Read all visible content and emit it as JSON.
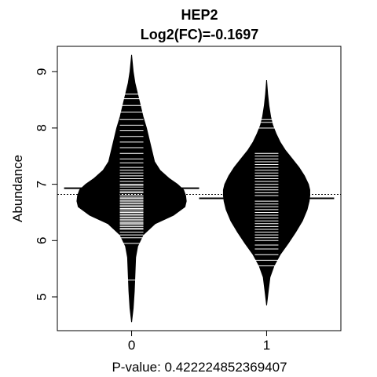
{
  "chart_data": {
    "type": "beanplot",
    "title": "HEP2",
    "subtitle": "Log2(FC)=-0.1697",
    "xlabel": "P-value: 0.422224852369407",
    "ylabel": "Abundance",
    "categories": [
      "0",
      "1"
    ],
    "yticks": [
      5,
      6,
      7,
      8,
      9
    ],
    "ylim": [
      4.4,
      9.45
    ],
    "xlim": [
      -0.55,
      1.55
    ],
    "overall_mean": 6.82,
    "grid": false,
    "legend": "none",
    "colors": {
      "bean": "#000000",
      "line": "#ffffff",
      "background": "#ffffff"
    },
    "groups": [
      {
        "category": "0",
        "mean": 6.93,
        "density_profile": [
          [
            4.55,
            0.0
          ],
          [
            4.8,
            0.012
          ],
          [
            5.1,
            0.02
          ],
          [
            5.4,
            0.025
          ],
          [
            5.7,
            0.03
          ],
          [
            5.9,
            0.045
          ],
          [
            6.1,
            0.085
          ],
          [
            6.3,
            0.175
          ],
          [
            6.45,
            0.31
          ],
          [
            6.6,
            0.395
          ],
          [
            6.7,
            0.405
          ],
          [
            6.8,
            0.4
          ],
          [
            6.9,
            0.385
          ],
          [
            7.0,
            0.34
          ],
          [
            7.1,
            0.28
          ],
          [
            7.25,
            0.21
          ],
          [
            7.4,
            0.17
          ],
          [
            7.6,
            0.15
          ],
          [
            7.8,
            0.13
          ],
          [
            8.0,
            0.11
          ],
          [
            8.2,
            0.085
          ],
          [
            8.4,
            0.065
          ],
          [
            8.6,
            0.045
          ],
          [
            8.8,
            0.025
          ],
          [
            9.0,
            0.012
          ],
          [
            9.15,
            0.006
          ],
          [
            9.3,
            0.0
          ]
        ],
        "observations": [
          5.3,
          5.95,
          6.05,
          6.1,
          6.15,
          6.2,
          6.22,
          6.25,
          6.28,
          6.3,
          6.32,
          6.35,
          6.37,
          6.4,
          6.42,
          6.45,
          6.47,
          6.5,
          6.52,
          6.55,
          6.57,
          6.6,
          6.62,
          6.65,
          6.67,
          6.7,
          6.72,
          6.75,
          6.77,
          6.8,
          6.82,
          6.85,
          6.87,
          6.9,
          6.93,
          6.95,
          6.98,
          7.0,
          7.05,
          7.1,
          7.15,
          7.2,
          7.25,
          7.3,
          7.38,
          7.45,
          7.55,
          7.65,
          7.75,
          7.85,
          7.95,
          8.05,
          8.15,
          8.28,
          8.4,
          8.52,
          8.6
        ]
      },
      {
        "category": "1",
        "mean": 6.75,
        "density_profile": [
          [
            4.85,
            0.0
          ],
          [
            5.1,
            0.012
          ],
          [
            5.35,
            0.025
          ],
          [
            5.55,
            0.055
          ],
          [
            5.75,
            0.1
          ],
          [
            5.95,
            0.16
          ],
          [
            6.15,
            0.215
          ],
          [
            6.35,
            0.265
          ],
          [
            6.55,
            0.3
          ],
          [
            6.7,
            0.315
          ],
          [
            6.8,
            0.32
          ],
          [
            6.9,
            0.32
          ],
          [
            7.0,
            0.31
          ],
          [
            7.15,
            0.28
          ],
          [
            7.3,
            0.24
          ],
          [
            7.45,
            0.19
          ],
          [
            7.6,
            0.14
          ],
          [
            7.75,
            0.1
          ],
          [
            7.9,
            0.07
          ],
          [
            8.05,
            0.045
          ],
          [
            8.2,
            0.03
          ],
          [
            8.4,
            0.017
          ],
          [
            8.6,
            0.008
          ],
          [
            8.85,
            0.0
          ]
        ],
        "observations": [
          5.55,
          5.65,
          5.75,
          5.85,
          5.92,
          6.0,
          6.05,
          6.1,
          6.15,
          6.2,
          6.25,
          6.3,
          6.35,
          6.4,
          6.45,
          6.5,
          6.55,
          6.6,
          6.65,
          6.7,
          6.75,
          6.8,
          6.85,
          6.9,
          6.95,
          7.0,
          7.05,
          7.1,
          7.15,
          7.2,
          7.25,
          7.3,
          7.35,
          7.4,
          7.45,
          7.5,
          7.55,
          8.0,
          8.1,
          8.15
        ]
      }
    ]
  }
}
